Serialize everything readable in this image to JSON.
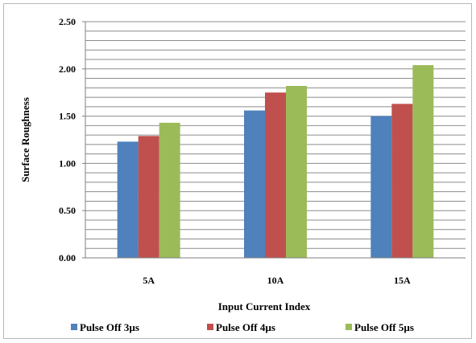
{
  "chart_data": {
    "type": "bar",
    "title": "",
    "xlabel": "Input Current  Index",
    "ylabel": "Surface Roughness",
    "ylim": [
      0,
      2.5
    ],
    "ytick_step": 0.1,
    "ytick_labels": [
      "0.00",
      "0.50",
      "1.00",
      "1.50",
      "2.00",
      "2.50"
    ],
    "categories": [
      "5A",
      "10A",
      "15A"
    ],
    "series": [
      {
        "name": "Pulse Off 3µs",
        "color": "#4f81bd",
        "values": [
          1.23,
          1.56,
          1.5
        ]
      },
      {
        "name": "Pulse Off 4µs",
        "color": "#c0504d",
        "values": [
          1.29,
          1.75,
          1.63
        ]
      },
      {
        "name": "Pulse Off 5µs",
        "color": "#9bbb59",
        "values": [
          1.43,
          1.82,
          2.04
        ]
      }
    ],
    "grid": true,
    "legend_position": "bottom"
  }
}
